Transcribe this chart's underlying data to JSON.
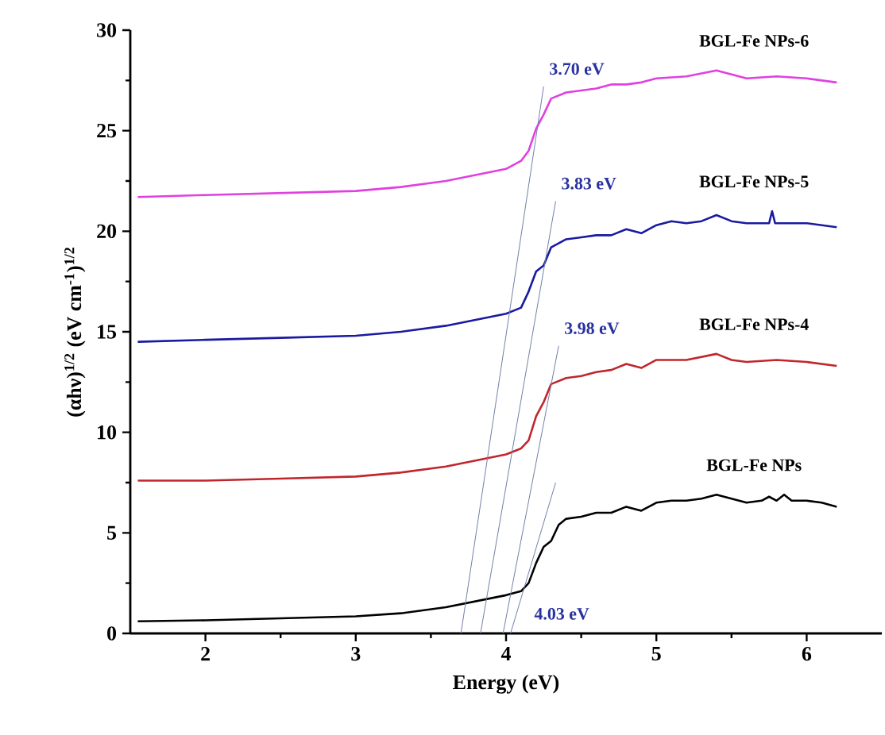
{
  "chart_data": {
    "type": "line",
    "xlabel": "Energy (eV)",
    "ylabel": "(αhν)$^{1/2}$ (eV cm$^{-1}$)$^{1/2}$",
    "xlim": [
      1.5,
      6.5
    ],
    "ylim": [
      0,
      30
    ],
    "xticks": [
      2,
      3,
      4,
      5,
      6
    ],
    "yticks": [
      0,
      5,
      10,
      15,
      20,
      25,
      30
    ],
    "series": [
      {
        "name": "BGL-Fe NPs",
        "color": "#000000",
        "x": [
          1.55,
          2,
          2.5,
          3,
          3.3,
          3.6,
          3.8,
          4.0,
          4.1,
          4.15,
          4.2,
          4.25,
          4.3,
          4.35,
          4.4,
          4.5,
          4.6,
          4.7,
          4.8,
          4.9,
          5.0,
          5.1,
          5.2,
          5.3,
          5.4,
          5.5,
          5.6,
          5.7,
          5.75,
          5.8,
          5.85,
          5.9,
          6.0,
          6.1,
          6.2
        ],
        "values": [
          0.6,
          0.65,
          0.75,
          0.85,
          1.0,
          1.3,
          1.6,
          1.9,
          2.1,
          2.5,
          3.5,
          4.3,
          4.6,
          5.4,
          5.7,
          5.8,
          6.0,
          6.0,
          6.3,
          6.1,
          6.5,
          6.6,
          6.6,
          6.7,
          6.9,
          6.7,
          6.5,
          6.6,
          6.8,
          6.6,
          6.9,
          6.6,
          6.6,
          6.5,
          6.3
        ]
      },
      {
        "name": "BGL-Fe NPs-4",
        "color": "#c0262c",
        "x": [
          1.55,
          2,
          2.5,
          3,
          3.3,
          3.6,
          3.8,
          4.0,
          4.1,
          4.15,
          4.2,
          4.25,
          4.3,
          4.4,
          4.5,
          4.6,
          4.7,
          4.8,
          4.9,
          5.0,
          5.2,
          5.4,
          5.5,
          5.6,
          5.8,
          6.0,
          6.2
        ],
        "values": [
          7.6,
          7.6,
          7.7,
          7.8,
          8.0,
          8.3,
          8.6,
          8.9,
          9.2,
          9.6,
          10.8,
          11.5,
          12.4,
          12.7,
          12.8,
          13.0,
          13.1,
          13.4,
          13.2,
          13.6,
          13.6,
          13.9,
          13.6,
          13.5,
          13.6,
          13.5,
          13.3
        ]
      },
      {
        "name": "BGL-Fe NPs-5",
        "color": "#1a1aa0",
        "x": [
          1.55,
          2,
          2.5,
          3,
          3.3,
          3.6,
          3.8,
          4.0,
          4.1,
          4.15,
          4.2,
          4.25,
          4.3,
          4.4,
          4.5,
          4.6,
          4.7,
          4.8,
          4.9,
          5.0,
          5.1,
          5.2,
          5.3,
          5.4,
          5.5,
          5.6,
          5.75,
          5.77,
          5.79,
          6.0,
          6.2
        ],
        "values": [
          14.5,
          14.6,
          14.7,
          14.8,
          15.0,
          15.3,
          15.6,
          15.9,
          16.2,
          17.0,
          18.0,
          18.3,
          19.2,
          19.6,
          19.7,
          19.8,
          19.8,
          20.1,
          19.9,
          20.3,
          20.5,
          20.4,
          20.5,
          20.8,
          20.5,
          20.4,
          20.4,
          21.0,
          20.4,
          20.4,
          20.2
        ]
      },
      {
        "name": "BGL-Fe NPs-6",
        "color": "#e040e0",
        "x": [
          1.55,
          2,
          2.5,
          3,
          3.3,
          3.6,
          3.8,
          4.0,
          4.1,
          4.15,
          4.2,
          4.25,
          4.3,
          4.4,
          4.5,
          4.6,
          4.7,
          4.8,
          4.9,
          5.0,
          5.2,
          5.4,
          5.5,
          5.6,
          5.8,
          6.0,
          6.2
        ],
        "values": [
          21.7,
          21.8,
          21.9,
          22.0,
          22.2,
          22.5,
          22.8,
          23.1,
          23.5,
          24.0,
          25.1,
          25.8,
          26.6,
          26.9,
          27.0,
          27.1,
          27.3,
          27.3,
          27.4,
          27.6,
          27.7,
          28.0,
          27.8,
          27.6,
          27.7,
          27.6,
          27.4
        ]
      },
      {
        "type": "line",
        "color": "#7080a8",
        "x": [
          3.7,
          4.25
        ],
        "values": [
          0,
          27.2
        ]
      },
      {
        "type": "line",
        "color": "#7080a8",
        "x": [
          3.83,
          4.33
        ],
        "values": [
          0,
          21.5
        ]
      },
      {
        "type": "line",
        "color": "#7080a8",
        "x": [
          3.98,
          4.35
        ],
        "values": [
          0,
          14.3
        ]
      },
      {
        "type": "line",
        "color": "#7080a8",
        "x": [
          4.03,
          4.33
        ],
        "values": [
          0,
          7.5
        ]
      }
    ],
    "annotations": [
      "3.70 eV",
      "3.83 eV",
      "3.98 eV",
      "4.03 eV"
    ]
  }
}
